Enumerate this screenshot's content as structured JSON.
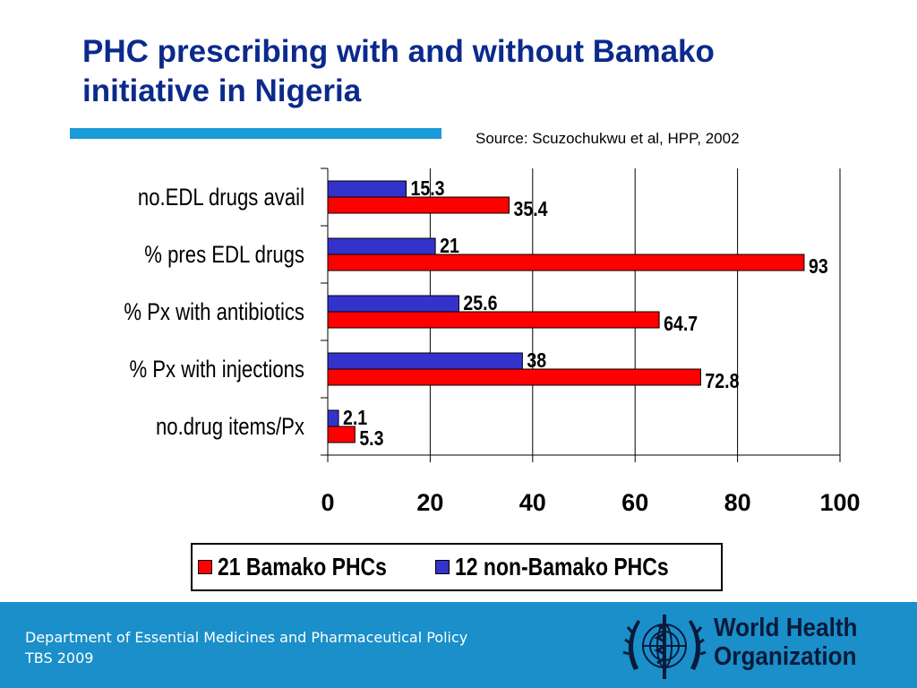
{
  "slide": {
    "title": "PHC prescribing with and without Bamako initiative in Nigeria",
    "source": "Source: Scuzochukwu et al, HPP, 2002"
  },
  "colors": {
    "title": "#0b2a8c",
    "rule": "#1a9ad6",
    "bamako": "#ff0000",
    "non_bamako": "#3333cc",
    "footer": "#1a8fc9"
  },
  "chart_data": {
    "type": "bar",
    "orientation": "horizontal",
    "categories": [
      "no.EDL drugs avail",
      "% pres EDL drugs",
      "% Px with antibiotics",
      "% Px with injections",
      "no.drug items/Px"
    ],
    "series": [
      {
        "name": "21 Bamako PHCs",
        "color": "#ff0000",
        "values": [
          35.4,
          93,
          64.7,
          72.8,
          5.3
        ]
      },
      {
        "name": "12 non-Bamako PHCs",
        "color": "#3333cc",
        "values": [
          15.3,
          21,
          25.6,
          38,
          2.1
        ]
      }
    ],
    "value_labels": {
      "bamako": [
        "35.4",
        "93",
        "64.7",
        "72.8",
        "5.3"
      ],
      "non_bamako": [
        "15.3",
        "21",
        "25.6",
        "38",
        "2.1"
      ]
    },
    "xlim": [
      0,
      100
    ],
    "xticks": [
      0,
      20,
      40,
      60,
      80,
      100
    ],
    "xtick_labels": [
      "0",
      "20",
      "40",
      "60",
      "80",
      "100"
    ],
    "grid": "vertical",
    "legend_position": "bottom"
  },
  "footer": {
    "line1": "Department of Essential Medicines and Pharmaceutical Policy",
    "line2": "TBS 2009",
    "org_line1": "World Health",
    "org_line2": "Organization"
  }
}
